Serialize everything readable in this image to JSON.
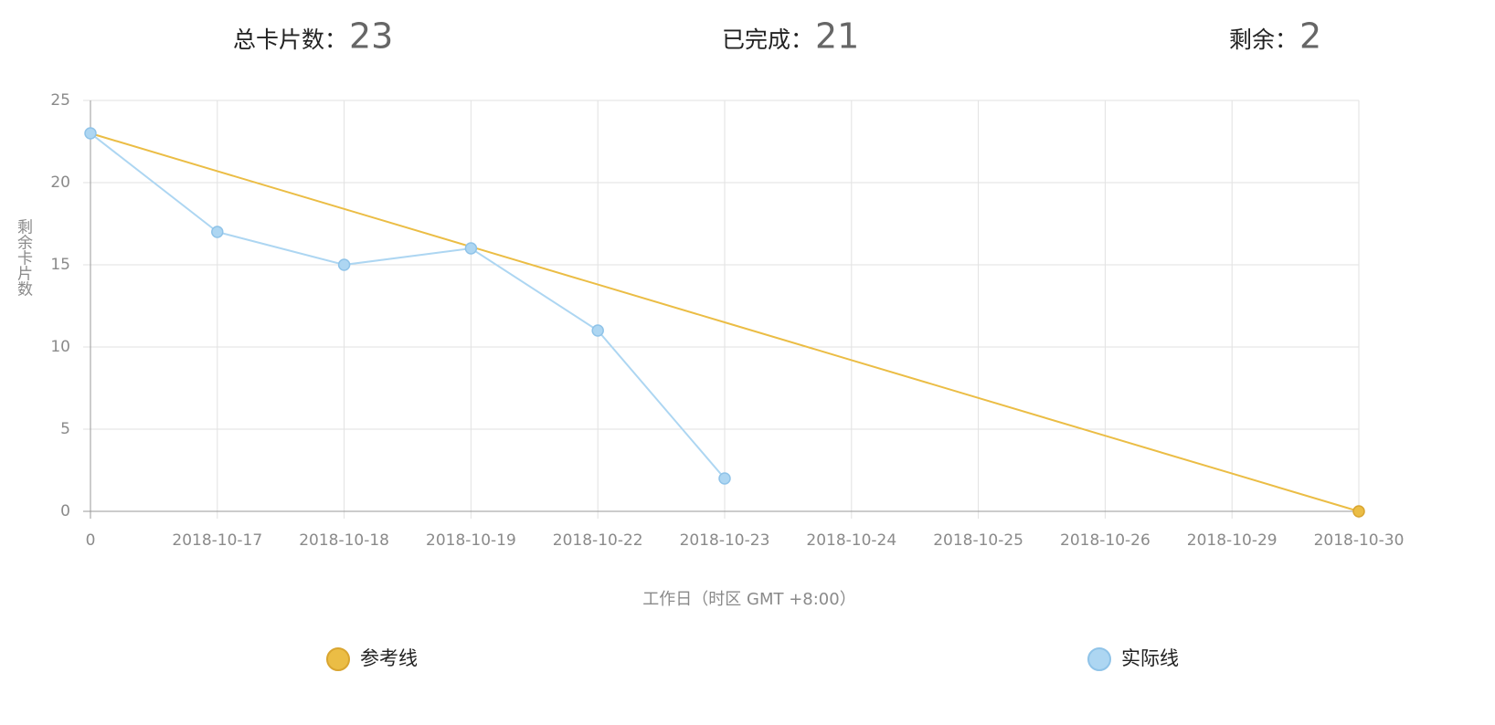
{
  "stats": [
    {
      "label": "总卡片数：",
      "value": 23
    },
    {
      "label": "已完成：",
      "value": 21
    },
    {
      "label": "剩余：",
      "value": 2
    }
  ],
  "chart_data": {
    "type": "line",
    "ylabel": "剩余卡片数",
    "xlabel": "工作日（时区 GMT +8:00）",
    "categories": [
      "0",
      "2018-10-17",
      "2018-10-18",
      "2018-10-19",
      "2018-10-22",
      "2018-10-23",
      "2018-10-24",
      "2018-10-25",
      "2018-10-26",
      "2018-10-29",
      "2018-10-30"
    ],
    "series": [
      {
        "name": "参考线",
        "color": "#ebbd45",
        "values": [
          23,
          20.7,
          18.4,
          16.1,
          13.8,
          11.5,
          9.2,
          6.9,
          4.6,
          2.3,
          0
        ]
      },
      {
        "name": "实际线",
        "color": "#add6f2",
        "values": [
          23,
          17,
          15,
          16,
          11,
          2,
          null,
          null,
          null,
          null,
          null
        ]
      }
    ],
    "ylim": [
      0,
      25
    ],
    "yticks": [
      0,
      5,
      10,
      15,
      20,
      25
    ],
    "grid": true
  }
}
